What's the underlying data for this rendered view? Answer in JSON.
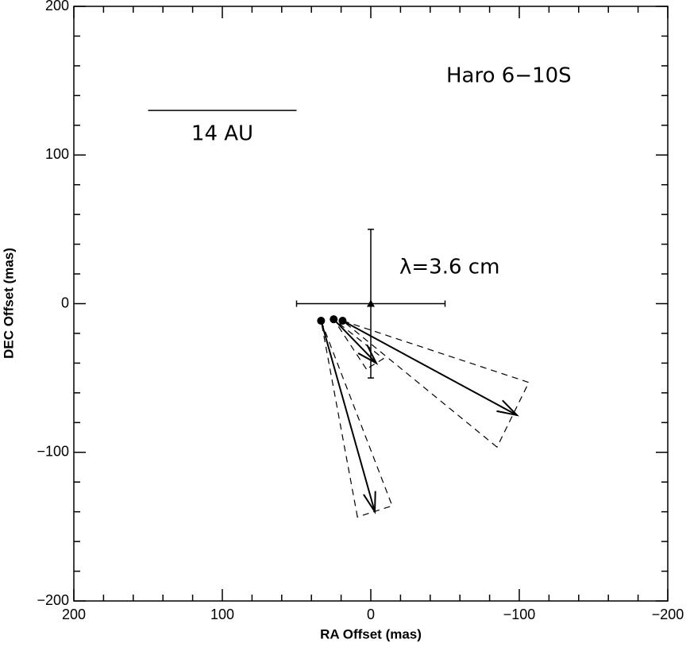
{
  "chart_data": {
    "type": "proper-motion",
    "xlabel": "RA Offset (mas)",
    "ylabel": "DEC Offset (mas)",
    "annotations": [
      "Haro 6−10S",
      "λ=3.6 cm"
    ],
    "xlim": [
      200,
      -200
    ],
    "ylim": [
      -200,
      200
    ],
    "xticks": [
      200,
      100,
      0,
      {
        "value": -100,
        "label": "−100"
      },
      {
        "value": -200,
        "label": "−200"
      }
    ],
    "yticks": [
      {
        "value": -200,
        "label": "−200"
      },
      {
        "value": -100,
        "label": "−100"
      },
      0,
      100,
      200
    ],
    "minor_ticks": [
      -180,
      -160,
      -140,
      -120,
      -80,
      -60,
      -40,
      -20,
      20,
      40,
      60,
      80,
      120,
      140,
      160,
      180
    ],
    "reference": {
      "x": 0,
      "y": 0,
      "x_error": 50,
      "y_error": 50
    },
    "positions": {
      "x": [
        33.5,
        25,
        19
      ],
      "y": [
        -11.5,
        -10.5,
        -11.5
      ]
    },
    "motion_end": {
      "x": [
        -2.7,
        -3.7,
        -98.4
      ],
      "y": [
        -140,
        -40,
        -75
      ]
    },
    "cone_a": {
      "x": [
        9,
        3,
        -85
      ],
      "y": [
        -143.5,
        -44,
        -96.5
      ]
    },
    "cone_b": {
      "x": [
        -14.4,
        -8.5,
        -106.4
      ],
      "y": [
        -136,
        -37,
        -53
      ]
    },
    "scale_bar": {
      "x": [
        150,
        50
      ],
      "y": [
        130,
        130
      ],
      "label": "14 AU"
    },
    "color": "#000000"
  }
}
